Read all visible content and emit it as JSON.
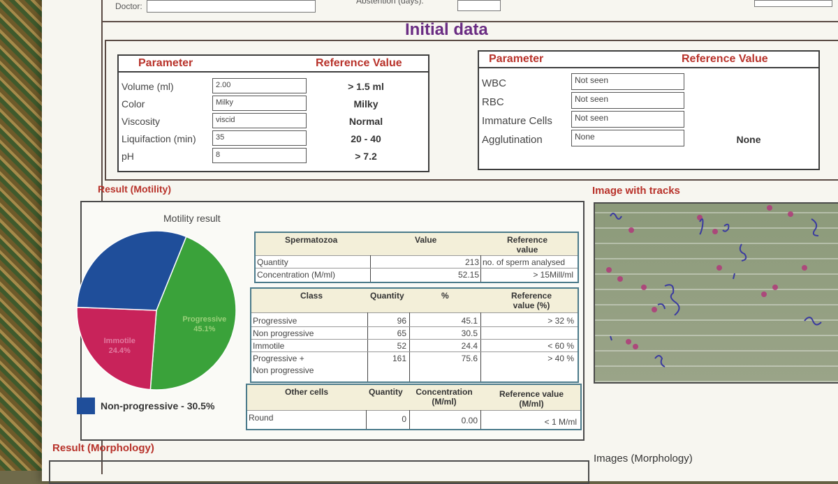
{
  "header": {
    "doctor_label": "Doctor:",
    "abstention_label": "Abstention (days):",
    "title": "Initial data"
  },
  "left_table": {
    "col_param": "Parameter",
    "col_ref": "Reference Value",
    "rows": [
      {
        "label": "Volume (ml)",
        "value": "2.00",
        "ref": "> 1.5 ml"
      },
      {
        "label": "Color",
        "value": "Milky",
        "ref": "Milky"
      },
      {
        "label": "Viscosity",
        "value": "viscid",
        "ref": "Normal"
      },
      {
        "label": "Liquifaction (min)",
        "value": "35",
        "ref": "20 - 40"
      },
      {
        "label": "pH",
        "value": "8",
        "ref": "> 7.2"
      }
    ]
  },
  "right_table": {
    "col_param": "Parameter",
    "col_ref": "Reference Value",
    "rows": [
      {
        "label": "WBC",
        "value": "Not seen",
        "ref": ""
      },
      {
        "label": "RBC",
        "value": "Not seen",
        "ref": ""
      },
      {
        "label": "Immature Cells",
        "value": "Not seen",
        "ref": ""
      },
      {
        "label": "Agglutination",
        "value": "None",
        "ref": "None"
      }
    ]
  },
  "motility": {
    "section_title": "Result (Motility)",
    "chart_title": "Motility result",
    "legend_text": "Non-progressive - 30.5%",
    "spermatozoa": {
      "headers": [
        "Spermatozoa",
        "Value",
        "Reference value"
      ],
      "rows": [
        {
          "label": "Quantity",
          "value": "213",
          "ref": "no. of sperm analysed"
        },
        {
          "label": "Concentration (M/ml)",
          "value": "52.15",
          "ref": "> 15Mill/ml"
        }
      ]
    },
    "classes": {
      "headers": [
        "Class",
        "Quantity",
        "%",
        "Reference value (%)"
      ],
      "rows": [
        {
          "label": "Progressive",
          "qty": "96",
          "pct": "45.1",
          "ref": "> 32 %"
        },
        {
          "label": "Non progressive",
          "qty": "65",
          "pct": "30.5",
          "ref": ""
        },
        {
          "label": "Immotile",
          "qty": "52",
          "pct": "24.4",
          "ref": "< 60 %"
        },
        {
          "label": "Progressive +",
          "label2": "Non progressive",
          "qty": "161",
          "pct": "75.6",
          "ref": "> 40 %"
        }
      ]
    },
    "other_cells": {
      "headers": [
        "Other cells",
        "Quantity",
        "Concentration (M/ml)",
        "Reference value (M/ml)"
      ],
      "rows": [
        {
          "label": "Round",
          "qty": "0",
          "conc": "0.00",
          "ref": "< 1 M/ml"
        }
      ]
    }
  },
  "tracks": {
    "title": "Image with tracks"
  },
  "morphology": {
    "section_title": "Result (Morphology)",
    "images_title": "Images (Morphology)"
  },
  "chart_data": {
    "type": "pie",
    "title": "Motility result",
    "series": [
      {
        "name": "Progressive",
        "label": "Progressive 45.1%",
        "value": 45.1,
        "color": "#3aa23a"
      },
      {
        "name": "Immotile",
        "label": "Immotile 24.4%",
        "value": 24.4,
        "color": "#c8235a"
      },
      {
        "name": "Non-progressive",
        "label": "Non-progressive - 30.5%",
        "value": 30.5,
        "color": "#1f4e9a"
      }
    ]
  }
}
